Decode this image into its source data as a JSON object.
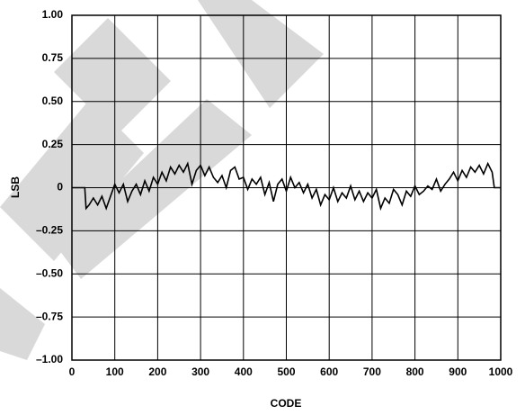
{
  "chart_data": {
    "type": "line",
    "xlabel": "CODE",
    "ylabel": "LSB",
    "xlim": [
      0,
      1000
    ],
    "xticks": [
      0,
      100,
      200,
      300,
      400,
      500,
      600,
      700,
      800,
      900,
      1000
    ],
    "ylim": [
      -1,
      1
    ],
    "yticks": [
      {
        "value": -1,
        "label": "–1.00"
      },
      {
        "value": -0.75,
        "label": "–0.75"
      },
      {
        "value": -0.5,
        "label": "–0.50"
      },
      {
        "value": -0.25,
        "label": "–0.25"
      },
      0,
      {
        "value": 0.25,
        "label": "0.25"
      },
      {
        "value": 0.5,
        "label": "0.50"
      },
      {
        "value": 0.75,
        "label": "0.75"
      },
      {
        "value": 1,
        "label": "1.00"
      }
    ],
    "grid": true,
    "series": [
      {
        "color": "#000000",
        "x": [
          0,
          30,
          33,
          40,
          50,
          60,
          70,
          80,
          90,
          100,
          110,
          120,
          130,
          140,
          150,
          160,
          170,
          180,
          190,
          200,
          210,
          220,
          230,
          240,
          250,
          260,
          270,
          280,
          290,
          300,
          310,
          320,
          330,
          340,
          350,
          360,
          370,
          380,
          390,
          400,
          410,
          420,
          430,
          440,
          450,
          460,
          470,
          480,
          490,
          500,
          510,
          520,
          530,
          540,
          550,
          560,
          570,
          580,
          590,
          600,
          610,
          620,
          630,
          640,
          650,
          660,
          670,
          680,
          690,
          700,
          710,
          720,
          730,
          740,
          750,
          760,
          770,
          780,
          790,
          800,
          810,
          820,
          830,
          840,
          850,
          860,
          870,
          880,
          890,
          900,
          910,
          920,
          930,
          940,
          950,
          960,
          970,
          980,
          985,
          1000
        ],
        "values": [
          0,
          0,
          -0.12,
          -0.1,
          -0.06,
          -0.1,
          -0.05,
          -0.12,
          -0.05,
          0.02,
          -0.03,
          0.02,
          -0.08,
          -0.02,
          0.02,
          -0.04,
          0.04,
          -0.02,
          0.06,
          0.02,
          0.09,
          0.04,
          0.12,
          0.08,
          0.13,
          0.09,
          0.14,
          0.02,
          0.1,
          0.13,
          0.07,
          0.12,
          0.06,
          0.03,
          0.07,
          0,
          0.1,
          0.12,
          0.05,
          0.06,
          -0.01,
          0.05,
          0.02,
          0.06,
          -0.04,
          0.03,
          -0.08,
          0.02,
          0.05,
          -0.02,
          0.06,
          0,
          0.03,
          -0.03,
          0.02,
          -0.06,
          -0.01,
          -0.1,
          -0.04,
          -0.07,
          0,
          -0.08,
          -0.03,
          -0.06,
          0.01,
          -0.07,
          -0.02,
          -0.08,
          -0.03,
          -0.06,
          -0.01,
          -0.12,
          -0.06,
          -0.09,
          -0.01,
          -0.04,
          -0.1,
          -0.02,
          -0.05,
          0.01,
          -0.04,
          -0.02,
          0.01,
          -0.01,
          0.05,
          -0.02,
          0.02,
          0.05,
          0.09,
          0.04,
          0.1,
          0.06,
          0.12,
          0.09,
          0.13,
          0.08,
          0.14,
          0.09,
          0,
          0
        ]
      }
    ]
  }
}
